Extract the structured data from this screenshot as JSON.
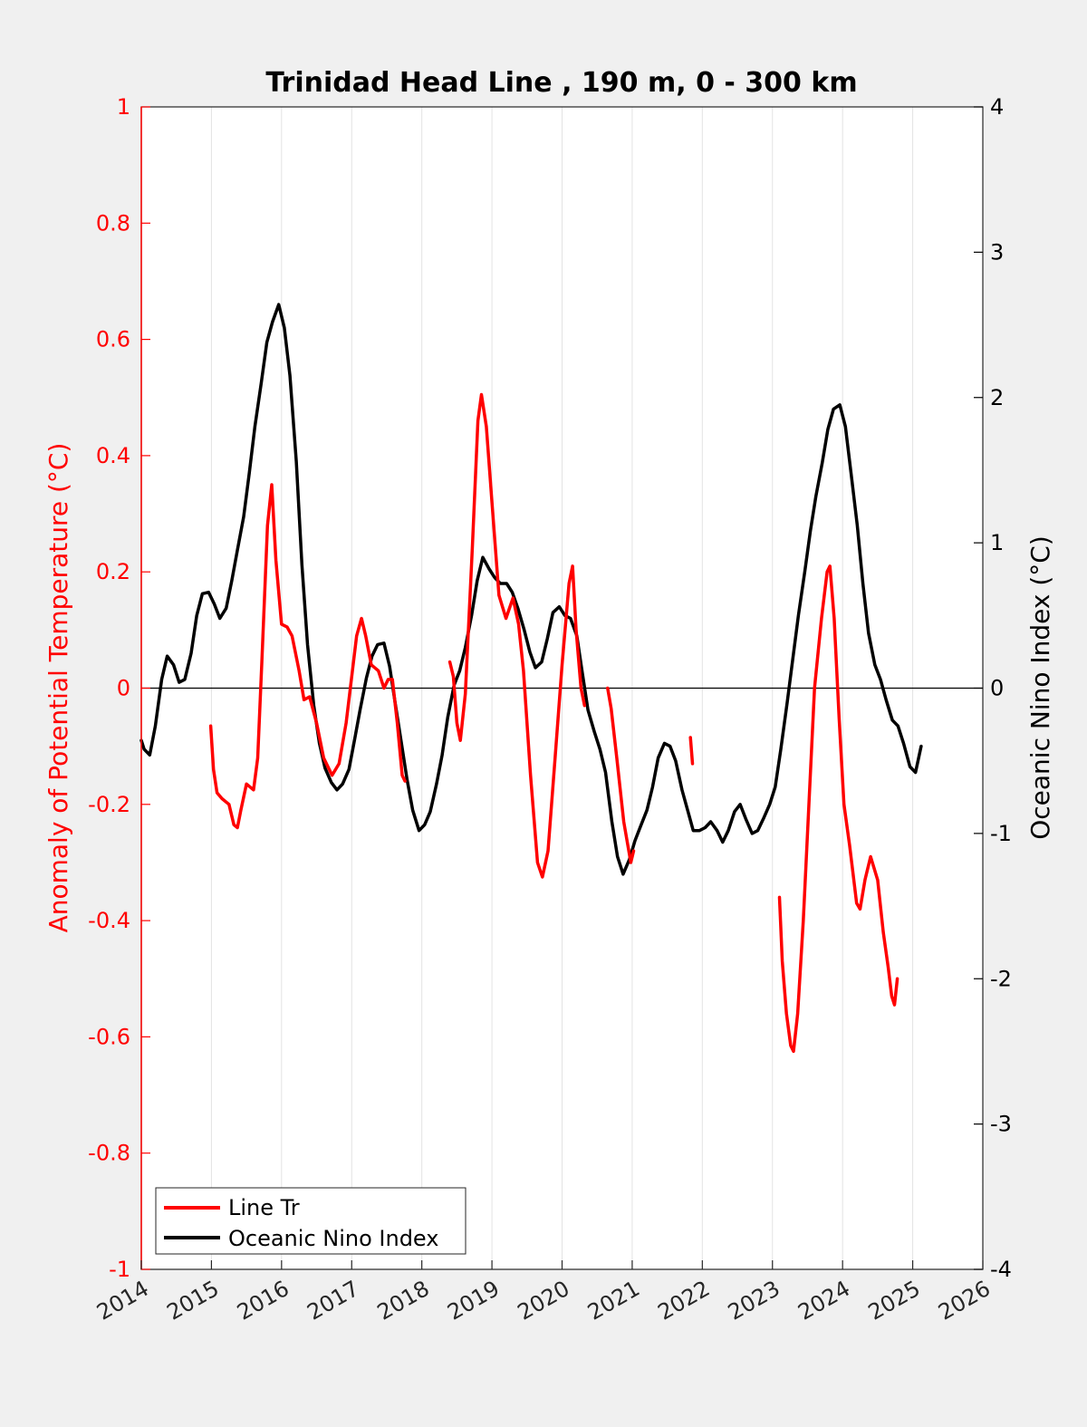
{
  "chart_data": {
    "type": "line",
    "title": "Trinidad Head Line , 190 m, 0 - 300 km",
    "ylabel_left": "Anomaly of Potential Temperature (°C)",
    "ylabel_right": "Oceanic Nino Index (°C)",
    "xlim": [
      2014,
      2026
    ],
    "ylim_left": [
      -1,
      1
    ],
    "ylim_right": [
      -4,
      4
    ],
    "x_ticks": [
      "2014",
      "2015",
      "2016",
      "2017",
      "2018",
      "2019",
      "2020",
      "2021",
      "2022",
      "2023",
      "2024",
      "2025",
      "2026"
    ],
    "y_ticks_left": [
      "1",
      "0.8",
      "0.6",
      "0.4",
      "0.2",
      "0",
      "-0.2",
      "-0.4",
      "-0.6",
      "-0.8",
      "-1"
    ],
    "y_ticks_right": [
      "4",
      "3",
      "2",
      "1",
      "0",
      "-1",
      "-2",
      "-3",
      "-4"
    ],
    "grid": "vertical",
    "legend_position": "bottom-left",
    "colors": {
      "line_tr": "#ff0000",
      "oni": "#000000"
    },
    "series": [
      {
        "name": "Line Tr",
        "axis": "left",
        "segments": [
          [
            [
              2014.99,
              -0.065
            ],
            [
              2015.03,
              -0.14
            ],
            [
              2015.08,
              -0.18
            ],
            [
              2015.15,
              -0.19
            ],
            [
              2015.25,
              -0.2
            ],
            [
              2015.32,
              -0.235
            ],
            [
              2015.37,
              -0.24
            ],
            [
              2015.42,
              -0.21
            ],
            [
              2015.5,
              -0.165
            ],
            [
              2015.6,
              -0.175
            ],
            [
              2015.66,
              -0.12
            ],
            [
              2015.72,
              0.05
            ],
            [
              2015.8,
              0.28
            ],
            [
              2015.86,
              0.35
            ],
            [
              2015.92,
              0.22
            ],
            [
              2016.0,
              0.11
            ],
            [
              2016.08,
              0.105
            ],
            [
              2016.15,
              0.09
            ],
            [
              2016.25,
              0.03
            ],
            [
              2016.32,
              -0.02
            ],
            [
              2016.4,
              -0.015
            ],
            [
              2016.5,
              -0.06
            ],
            [
              2016.6,
              -0.12
            ],
            [
              2016.72,
              -0.15
            ],
            [
              2016.82,
              -0.13
            ],
            [
              2016.92,
              -0.06
            ],
            [
              2017.0,
              0.02
            ],
            [
              2017.07,
              0.09
            ],
            [
              2017.14,
              0.12
            ],
            [
              2017.2,
              0.09
            ],
            [
              2017.28,
              0.04
            ],
            [
              2017.38,
              0.03
            ],
            [
              2017.46,
              0.0
            ],
            [
              2017.52,
              0.015
            ],
            [
              2017.58,
              0.015
            ],
            [
              2017.65,
              -0.06
            ],
            [
              2017.72,
              -0.15
            ],
            [
              2017.76,
              -0.16
            ]
          ],
          [
            [
              2018.4,
              0.045
            ],
            [
              2018.45,
              0.02
            ],
            [
              2018.5,
              -0.06
            ],
            [
              2018.55,
              -0.09
            ],
            [
              2018.62,
              -0.01
            ],
            [
              2018.72,
              0.24
            ],
            [
              2018.8,
              0.46
            ],
            [
              2018.85,
              0.505
            ],
            [
              2018.92,
              0.45
            ],
            [
              2019.0,
              0.32
            ],
            [
              2019.1,
              0.16
            ],
            [
              2019.2,
              0.12
            ],
            [
              2019.3,
              0.155
            ],
            [
              2019.38,
              0.11
            ],
            [
              2019.45,
              0.03
            ],
            [
              2019.55,
              -0.15
            ],
            [
              2019.65,
              -0.3
            ],
            [
              2019.72,
              -0.325
            ],
            [
              2019.8,
              -0.28
            ],
            [
              2019.9,
              -0.12
            ],
            [
              2020.0,
              0.04
            ],
            [
              2020.1,
              0.18
            ],
            [
              2020.15,
              0.21
            ],
            [
              2020.2,
              0.1
            ],
            [
              2020.27,
              0.0
            ],
            [
              2020.32,
              -0.03
            ]
          ],
          [
            [
              2020.65,
              0.0
            ],
            [
              2020.7,
              -0.035
            ],
            [
              2020.78,
              -0.12
            ],
            [
              2020.88,
              -0.23
            ],
            [
              2020.98,
              -0.3
            ],
            [
              2021.02,
              -0.28
            ]
          ],
          [
            [
              2021.83,
              -0.085
            ],
            [
              2021.86,
              -0.13
            ]
          ],
          [
            [
              2023.1,
              -0.36
            ],
            [
              2023.14,
              -0.47
            ],
            [
              2023.2,
              -0.56
            ],
            [
              2023.26,
              -0.615
            ],
            [
              2023.3,
              -0.625
            ],
            [
              2023.36,
              -0.56
            ],
            [
              2023.44,
              -0.4
            ],
            [
              2023.52,
              -0.2
            ],
            [
              2023.6,
              0.0
            ],
            [
              2023.7,
              0.12
            ],
            [
              2023.78,
              0.2
            ],
            [
              2023.82,
              0.21
            ],
            [
              2023.88,
              0.12
            ],
            [
              2023.95,
              -0.05
            ],
            [
              2024.02,
              -0.2
            ],
            [
              2024.1,
              -0.27
            ],
            [
              2024.2,
              -0.37
            ],
            [
              2024.25,
              -0.38
            ],
            [
              2024.32,
              -0.33
            ],
            [
              2024.4,
              -0.29
            ],
            [
              2024.5,
              -0.33
            ],
            [
              2024.58,
              -0.42
            ],
            [
              2024.65,
              -0.48
            ],
            [
              2024.7,
              -0.53
            ],
            [
              2024.74,
              -0.545
            ],
            [
              2024.78,
              -0.5
            ]
          ]
        ]
      },
      {
        "name": "Oceanic Nino Index",
        "axis": "right",
        "points": [
          [
            2014.0,
            -0.36
          ],
          [
            2014.04,
            -0.42
          ],
          [
            2014.12,
            -0.46
          ],
          [
            2014.2,
            -0.26
          ],
          [
            2014.29,
            0.06
          ],
          [
            2014.37,
            0.22
          ],
          [
            2014.46,
            0.16
          ],
          [
            2014.54,
            0.04
          ],
          [
            2014.62,
            0.06
          ],
          [
            2014.71,
            0.24
          ],
          [
            2014.79,
            0.5
          ],
          [
            2014.87,
            0.65
          ],
          [
            2014.96,
            0.66
          ],
          [
            2015.04,
            0.58
          ],
          [
            2015.12,
            0.48
          ],
          [
            2015.21,
            0.55
          ],
          [
            2015.29,
            0.74
          ],
          [
            2015.37,
            0.95
          ],
          [
            2015.46,
            1.18
          ],
          [
            2015.54,
            1.48
          ],
          [
            2015.62,
            1.8
          ],
          [
            2015.71,
            2.1
          ],
          [
            2015.79,
            2.38
          ],
          [
            2015.87,
            2.52
          ],
          [
            2015.96,
            2.64
          ],
          [
            2016.04,
            2.48
          ],
          [
            2016.12,
            2.15
          ],
          [
            2016.21,
            1.56
          ],
          [
            2016.29,
            0.85
          ],
          [
            2016.37,
            0.3
          ],
          [
            2016.46,
            -0.12
          ],
          [
            2016.54,
            -0.38
          ],
          [
            2016.62,
            -0.55
          ],
          [
            2016.71,
            -0.65
          ],
          [
            2016.79,
            -0.7
          ],
          [
            2016.87,
            -0.66
          ],
          [
            2016.96,
            -0.56
          ],
          [
            2017.04,
            -0.36
          ],
          [
            2017.12,
            -0.15
          ],
          [
            2017.21,
            0.07
          ],
          [
            2017.29,
            0.22
          ],
          [
            2017.37,
            0.3
          ],
          [
            2017.46,
            0.31
          ],
          [
            2017.54,
            0.15
          ],
          [
            2017.62,
            -0.1
          ],
          [
            2017.71,
            -0.38
          ],
          [
            2017.79,
            -0.63
          ],
          [
            2017.87,
            -0.84
          ],
          [
            2017.96,
            -0.98
          ],
          [
            2018.04,
            -0.94
          ],
          [
            2018.12,
            -0.85
          ],
          [
            2018.21,
            -0.66
          ],
          [
            2018.29,
            -0.46
          ],
          [
            2018.37,
            -0.2
          ],
          [
            2018.46,
            0.02
          ],
          [
            2018.54,
            0.12
          ],
          [
            2018.62,
            0.28
          ],
          [
            2018.71,
            0.5
          ],
          [
            2018.79,
            0.74
          ],
          [
            2018.87,
            0.9
          ],
          [
            2018.96,
            0.82
          ],
          [
            2019.04,
            0.76
          ],
          [
            2019.12,
            0.72
          ],
          [
            2019.21,
            0.72
          ],
          [
            2019.29,
            0.66
          ],
          [
            2019.37,
            0.55
          ],
          [
            2019.46,
            0.4
          ],
          [
            2019.54,
            0.25
          ],
          [
            2019.62,
            0.14
          ],
          [
            2019.71,
            0.18
          ],
          [
            2019.79,
            0.34
          ],
          [
            2019.87,
            0.52
          ],
          [
            2019.96,
            0.56
          ],
          [
            2020.04,
            0.5
          ],
          [
            2020.12,
            0.48
          ],
          [
            2020.21,
            0.36
          ],
          [
            2020.29,
            0.1
          ],
          [
            2020.37,
            -0.15
          ],
          [
            2020.46,
            -0.3
          ],
          [
            2020.54,
            -0.42
          ],
          [
            2020.62,
            -0.58
          ],
          [
            2020.71,
            -0.92
          ],
          [
            2020.79,
            -1.16
          ],
          [
            2020.87,
            -1.28
          ],
          [
            2020.96,
            -1.18
          ],
          [
            2021.04,
            -1.05
          ],
          [
            2021.12,
            -0.95
          ],
          [
            2021.21,
            -0.84
          ],
          [
            2021.29,
            -0.68
          ],
          [
            2021.37,
            -0.48
          ],
          [
            2021.46,
            -0.38
          ],
          [
            2021.54,
            -0.4
          ],
          [
            2021.62,
            -0.5
          ],
          [
            2021.71,
            -0.7
          ],
          [
            2021.79,
            -0.84
          ],
          [
            2021.87,
            -0.98
          ],
          [
            2021.96,
            -0.98
          ],
          [
            2022.04,
            -0.96
          ],
          [
            2022.12,
            -0.92
          ],
          [
            2022.21,
            -0.98
          ],
          [
            2022.29,
            -1.06
          ],
          [
            2022.37,
            -0.98
          ],
          [
            2022.46,
            -0.85
          ],
          [
            2022.54,
            -0.8
          ],
          [
            2022.62,
            -0.9
          ],
          [
            2022.71,
            -1.0
          ],
          [
            2022.79,
            -0.98
          ],
          [
            2022.87,
            -0.9
          ],
          [
            2022.96,
            -0.8
          ],
          [
            2023.04,
            -0.68
          ],
          [
            2023.12,
            -0.42
          ],
          [
            2023.21,
            -0.1
          ],
          [
            2023.29,
            0.2
          ],
          [
            2023.37,
            0.5
          ],
          [
            2023.46,
            0.8
          ],
          [
            2023.54,
            1.08
          ],
          [
            2023.62,
            1.32
          ],
          [
            2023.71,
            1.55
          ],
          [
            2023.79,
            1.78
          ],
          [
            2023.87,
            1.92
          ],
          [
            2023.96,
            1.95
          ],
          [
            2024.04,
            1.8
          ],
          [
            2024.12,
            1.48
          ],
          [
            2024.21,
            1.12
          ],
          [
            2024.29,
            0.72
          ],
          [
            2024.37,
            0.38
          ],
          [
            2024.46,
            0.16
          ],
          [
            2024.54,
            0.06
          ],
          [
            2024.62,
            -0.08
          ],
          [
            2024.71,
            -0.22
          ],
          [
            2024.79,
            -0.26
          ],
          [
            2024.87,
            -0.38
          ],
          [
            2024.96,
            -0.54
          ],
          [
            2025.04,
            -0.58
          ],
          [
            2025.12,
            -0.4
          ]
        ]
      }
    ]
  }
}
